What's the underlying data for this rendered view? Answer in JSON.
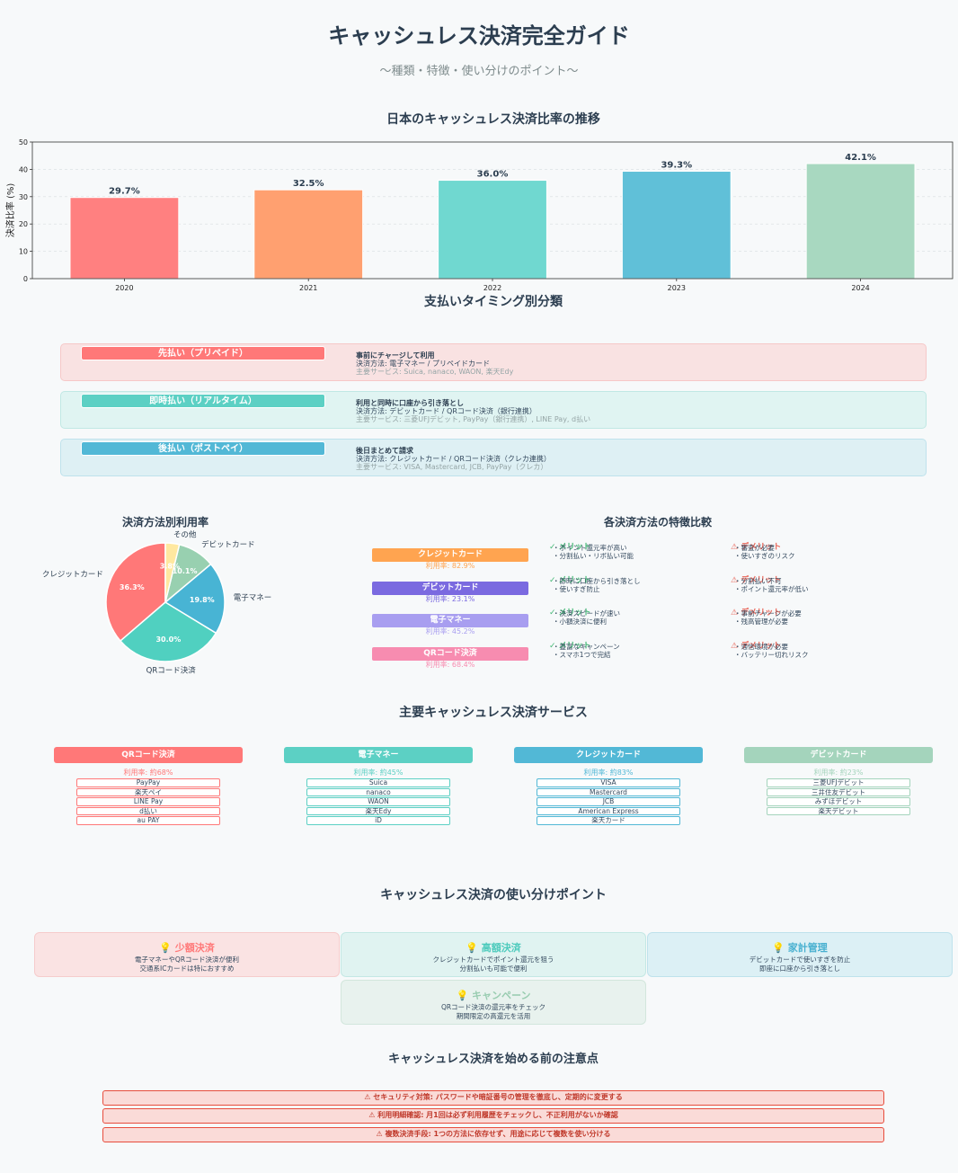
{
  "title": "キャッシュレス決済完全ガイド",
  "subtitle": "〜種類・特徴・使い分けのポイント〜",
  "chart_data": [
    {
      "type": "bar",
      "title": "日本のキャッシュレス決済比率の推移",
      "xlabel": "",
      "ylabel": "決済比率 (%)",
      "categories": [
        "2020",
        "2021",
        "2022",
        "2023",
        "2024"
      ],
      "values": [
        29.7,
        32.5,
        36.0,
        39.3,
        42.1
      ],
      "value_labels": [
        "29.7%",
        "32.5%",
        "36.0%",
        "39.3%",
        "42.1%"
      ],
      "colors": [
        "#ff8080",
        "#ffa070",
        "#70d8d0",
        "#60c0d8",
        "#a8d8c0"
      ],
      "ylim": [
        0,
        50
      ],
      "yticks": [
        "0",
        "10",
        "20",
        "30",
        "40",
        "50"
      ],
      "grid": true
    },
    {
      "type": "pie",
      "title": "決済方法別利用率",
      "labels": [
        "クレジットカード",
        "QRコード決済",
        "電子マネー",
        "デビットカード",
        "その他"
      ],
      "values": [
        36.3,
        30.0,
        19.8,
        10.1,
        3.8
      ],
      "value_labels": [
        "36.3%",
        "30.0%",
        "19.8%",
        "10.1%",
        "3.8%"
      ],
      "colors": [
        "#ff7878",
        "#50d0c0",
        "#48b4d4",
        "#98d0b0",
        "#ffe8a0"
      ]
    }
  ],
  "timing": {
    "title": "支払いタイミング別分類",
    "rows": [
      {
        "badge": "先払い（プリペイド）",
        "line1": "事前にチャージして利用",
        "line2": "決済方法: 電子マネー / プリペイドカード",
        "line3": "主要サービス: Suica, nanaco, WAON, 楽天Edy",
        "badge_color": "#ff7878",
        "bg": "#f9e2e2",
        "border": "#f6c8c8"
      },
      {
        "badge": "即時払い（リアルタイム）",
        "line1": "利用と同時に口座から引き落とし",
        "line2": "決済方法: デビットカード / QRコード決済（銀行連携）",
        "line3": "主要サービス: 三菱UFJデビット, PayPay（銀行連携）, LINE Pay, d払い",
        "badge_color": "#5cd0c4",
        "bg": "#e0f4f2",
        "border": "#c0e8e4"
      },
      {
        "badge": "後払い（ポストペイ）",
        "line1": "後日まとめて請求",
        "line2": "決済方法: クレジットカード / QRコード決済（クレカ連携）",
        "line3": "主要サービス: VISA, Mastercard, JCB, PayPay（クレカ）",
        "badge_color": "#52b8d6",
        "bg": "#def0f4",
        "border": "#bfe2ec"
      }
    ]
  },
  "compare": {
    "title": "各決済方法の特徴比較",
    "methods": [
      {
        "name": "クレジットカード",
        "rate": "利用率: 82.9%",
        "color": "#ffa450",
        "merit_head": "✓ メリット",
        "merit": [
          "・ポイント還元率が高い",
          "・分割払い・リボ払い可能"
        ],
        "demerit_head": "⚠ デメリット",
        "demerit": [
          "・審査が必要",
          "・使いすぎのリスク"
        ]
      },
      {
        "name": "デビットカード",
        "rate": "利用率: 23.1%",
        "color": "#7b6ae0",
        "merit_head": "✓ メリット",
        "merit": [
          "・即時に口座から引き落とし",
          "・使いすぎ防止"
        ],
        "demerit_head": "⚠ デメリット",
        "demerit": [
          "・分割払い不可",
          "・ポイント還元率が低い"
        ]
      },
      {
        "name": "電子マネー",
        "rate": "利用率: 45.2%",
        "color": "#a89ef0",
        "merit_head": "✓ メリット",
        "merit": [
          "・決済スピードが速い",
          "・小額決済に便利"
        ],
        "demerit_head": "⚠ デメリット",
        "demerit": [
          "・事前チャージが必要",
          "・残高管理が必要"
        ]
      },
      {
        "name": "QRコード決済",
        "rate": "利用率: 68.4%",
        "color": "#f78cb0",
        "merit_head": "✓ メリット",
        "merit": [
          "・豊富なキャンペーン",
          "・スマホ1つで完結"
        ],
        "demerit_head": "⚠ デメリット",
        "demerit": [
          "・通信環境が必要",
          "・バッテリー切れリスク"
        ]
      }
    ]
  },
  "services": {
    "title": "主要キャッシュレス決済サービス",
    "columns": [
      {
        "name": "QRコード決済",
        "rate": "利用率: 約68%",
        "color": "#ff7878",
        "items": [
          "PayPay",
          "楽天ペイ",
          "LINE Pay",
          "d払い",
          "au PAY"
        ]
      },
      {
        "name": "電子マネー",
        "rate": "利用率: 約45%",
        "color": "#5cd0c4",
        "items": [
          "Suica",
          "nanaco",
          "WAON",
          "楽天Edy",
          "iD"
        ]
      },
      {
        "name": "クレジットカード",
        "rate": "利用率: 約83%",
        "color": "#52b8d6",
        "items": [
          "VISA",
          "Mastercard",
          "JCB",
          "American Express",
          "楽天カード"
        ]
      },
      {
        "name": "デビットカード",
        "rate": "利用率: 約23%",
        "color": "#a4d4bc",
        "items": [
          "三菱UFJデビット",
          "三井住友デビット",
          "みずほデビット",
          "楽天デビット"
        ]
      }
    ]
  },
  "usage": {
    "title": "キャッシュレス決済の使い分けポイント",
    "cards": [
      {
        "title": "💡 少額決済",
        "desc1": "電子マネーやQRコード決済が便利",
        "desc2": "交通系ICカードは特におすすめ",
        "color": "#ff7878",
        "bg": "#fae3e3",
        "border": "#f6cccc"
      },
      {
        "title": "💡 高額決済",
        "desc1": "クレジットカードでポイント還元を狙う",
        "desc2": "分割払いも可能で便利",
        "color": "#4ccabc",
        "bg": "#e0f3f1",
        "border": "#c4e8e4"
      },
      {
        "title": "💡 家計管理",
        "desc1": "デビットカードで使いすぎを防止",
        "desc2": "即座に口座から引き落とし",
        "color": "#48b0d0",
        "bg": "#dcf0f5",
        "border": "#bfe2ec"
      },
      {
        "title": "💡 キャンペーン",
        "desc1": "QRコード決済の還元率をチェック",
        "desc2": "期間限定の高還元を活用",
        "color": "#98ccb0",
        "bg": "#e8f2ee",
        "border": "#d2e6dc"
      }
    ]
  },
  "cautions": {
    "title": "キャッシュレス決済を始める前の注意点",
    "items": [
      "⚠ セキュリティ対策: パスワードや暗証番号の管理を徹底し、定期的に変更する",
      "⚠ 利用明細確認: 月1回は必ず利用履歴をチェックし、不正利用がないか確認",
      "⚠ 複数決済手段: 1つの方法に依存せず、用途に応じて複数を使い分ける"
    ]
  }
}
